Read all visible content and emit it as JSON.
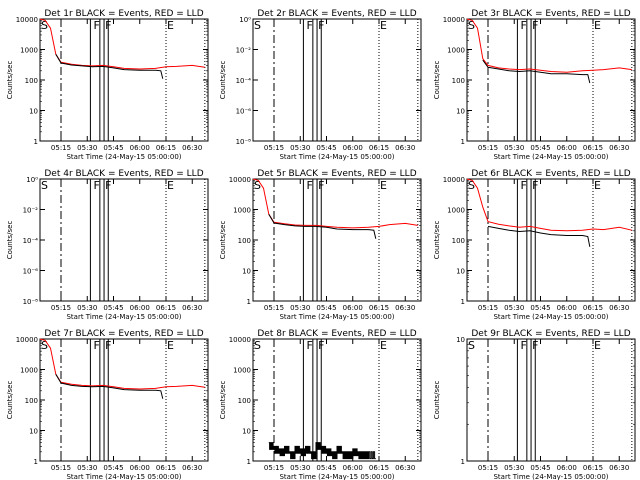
{
  "chart_data": [
    {
      "type": "line",
      "title": "Det 1r BLACK = Events, RED = LLD",
      "ylabel": "Counts/sec",
      "xlabel": "Start Time (24-May-15 05:00:00)",
      "yscale": "log",
      "ylim": [
        1,
        10000
      ],
      "ytick_labels": [
        "1",
        "10",
        "100",
        "1000",
        "10000"
      ],
      "xlim": [
        5.05,
        6.65
      ],
      "xtick_labels": [
        "05:15",
        "05:30",
        "05:45",
        "06:00",
        "06:15",
        "06:30"
      ],
      "vlines": {
        "dashdot": [
          5.25
        ],
        "solid": [
          5.53,
          5.62,
          5.66,
          5.7
        ],
        "dotted": [
          6.25,
          6.62
        ]
      },
      "markers": [
        {
          "label": "S",
          "x": 5.06
        },
        {
          "label": "F",
          "x": 5.56
        },
        {
          "label": "F",
          "x": 5.67
        },
        {
          "label": "E",
          "x": 6.26
        }
      ],
      "series": [
        {
          "color": "#ff0000",
          "x": [
            5.05,
            5.1,
            5.15,
            5.2,
            5.25,
            5.35,
            5.45,
            5.55,
            5.65,
            5.75,
            5.85,
            6.0,
            6.15,
            6.25,
            6.35,
            6.5,
            6.62
          ],
          "values": [
            10000,
            9000,
            5000,
            700,
            380,
            330,
            300,
            290,
            300,
            270,
            240,
            230,
            240,
            270,
            280,
            300,
            260
          ]
        },
        {
          "color": "#000000",
          "x": [
            5.2,
            5.25,
            5.35,
            5.45,
            5.55,
            5.65,
            5.75,
            5.85,
            6.0,
            6.15,
            6.2,
            6.22
          ],
          "values": [
            700,
            360,
            310,
            290,
            270,
            280,
            250,
            220,
            210,
            210,
            200,
            110
          ]
        }
      ]
    },
    {
      "type": "line",
      "title": "Det 2r BLACK = Events, RED = LLD",
      "ylabel": "Counts/sec",
      "xlabel": "Start Time (24-May-15 05:00:00)",
      "yscale": "log",
      "ylim": [
        1,
        1e-08
      ],
      "ytick_labels": [
        "10⁻⁸",
        "10⁻⁶",
        "10⁻⁴",
        "10⁻²",
        "10⁰"
      ],
      "xlim": [
        5.05,
        6.65
      ],
      "xtick_labels": [
        "05:15",
        "05:30",
        "05:45",
        "06:00",
        "06:15",
        "06:30"
      ],
      "vlines": {
        "dashdot": [
          5.25
        ],
        "solid": [
          5.53,
          5.62,
          5.66,
          5.7
        ],
        "dotted": [
          6.25,
          6.62
        ]
      },
      "markers": [
        {
          "label": "S",
          "x": 5.06
        },
        {
          "label": "F",
          "x": 5.56
        },
        {
          "label": "F",
          "x": 5.67
        },
        {
          "label": "E",
          "x": 6.26
        }
      ],
      "series": []
    },
    {
      "type": "line",
      "title": "Det 3r BLACK = Events, RED = LLD",
      "ylabel": "Counts/sec",
      "xlabel": "Start Time (24-May-15 05:00:00)",
      "yscale": "log",
      "ylim": [
        1,
        10000
      ],
      "ytick_labels": [
        "1",
        "10",
        "100",
        "1000",
        "10000"
      ],
      "xlim": [
        5.05,
        6.65
      ],
      "xtick_labels": [
        "05:15",
        "05:30",
        "05:45",
        "06:00",
        "06:15",
        "06:30"
      ],
      "vlines": {
        "dashdot": [
          5.25
        ],
        "solid": [
          5.53,
          5.62,
          5.66,
          5.7
        ],
        "dotted": [
          6.25,
          6.62
        ]
      },
      "markers": [
        {
          "label": "S",
          "x": 5.06
        },
        {
          "label": "F",
          "x": 5.56
        },
        {
          "label": "F",
          "x": 5.67
        },
        {
          "label": "E",
          "x": 6.26
        }
      ],
      "series": [
        {
          "color": "#ff0000",
          "x": [
            5.05,
            5.1,
            5.15,
            5.2,
            5.25,
            5.35,
            5.45,
            5.55,
            5.65,
            5.75,
            5.85,
            6.0,
            6.15,
            6.25,
            6.35,
            6.5,
            6.62
          ],
          "values": [
            10000,
            9000,
            5000,
            500,
            300,
            250,
            230,
            220,
            230,
            210,
            190,
            180,
            200,
            210,
            220,
            250,
            220
          ]
        },
        {
          "color": "#000000",
          "x": [
            5.2,
            5.25,
            5.35,
            5.45,
            5.55,
            5.65,
            5.75,
            5.85,
            6.0,
            6.15,
            6.2,
            6.22
          ],
          "values": [
            450,
            260,
            230,
            200,
            190,
            200,
            180,
            160,
            160,
            150,
            150,
            80
          ]
        }
      ]
    },
    {
      "type": "line",
      "title": "Det 4r BLACK = Events, RED = LLD",
      "ylabel": "Counts/sec",
      "xlabel": "Start Time (24-May-15 05:00:00)",
      "yscale": "log",
      "ylim": [
        1,
        1e-08
      ],
      "ytick_labels": [
        "10⁻⁸",
        "10⁻⁶",
        "10⁻⁴",
        "10⁻²",
        "10⁰"
      ],
      "xlim": [
        5.05,
        6.65
      ],
      "xtick_labels": [
        "05:15",
        "05:30",
        "05:45",
        "06:00",
        "06:15",
        "06:30"
      ],
      "vlines": {
        "dashdot": [
          5.25
        ],
        "solid": [
          5.53,
          5.62,
          5.66,
          5.7
        ],
        "dotted": [
          6.25,
          6.62
        ]
      },
      "markers": [
        {
          "label": "S",
          "x": 5.06
        },
        {
          "label": "F",
          "x": 5.56
        },
        {
          "label": "F",
          "x": 5.67
        },
        {
          "label": "E",
          "x": 6.26
        }
      ],
      "series": []
    },
    {
      "type": "line",
      "title": "Det 5r BLACK = Events, RED = LLD",
      "ylabel": "Counts/sec",
      "xlabel": "Start Time (24-May-15 05:00:00)",
      "yscale": "log",
      "ylim": [
        1,
        10000
      ],
      "ytick_labels": [
        "1",
        "10",
        "100",
        "1000",
        "10000"
      ],
      "xlim": [
        5.05,
        6.65
      ],
      "xtick_labels": [
        "05:15",
        "05:30",
        "05:45",
        "06:00",
        "06:15",
        "06:30"
      ],
      "vlines": {
        "dashdot": [
          5.25
        ],
        "solid": [
          5.53,
          5.62,
          5.66,
          5.7
        ],
        "dotted": [
          6.25,
          6.62
        ]
      },
      "markers": [
        {
          "label": "S",
          "x": 5.06
        },
        {
          "label": "F",
          "x": 5.56
        },
        {
          "label": "F",
          "x": 5.67
        },
        {
          "label": "E",
          "x": 6.26
        }
      ],
      "series": [
        {
          "color": "#ff0000",
          "x": [
            5.05,
            5.1,
            5.15,
            5.2,
            5.25,
            5.35,
            5.45,
            5.55,
            5.65,
            5.75,
            5.85,
            6.0,
            6.15,
            6.25,
            6.35,
            6.5,
            6.62
          ],
          "values": [
            10000,
            9000,
            5000,
            700,
            380,
            340,
            310,
            300,
            300,
            280,
            260,
            250,
            260,
            280,
            320,
            350,
            300
          ]
        },
        {
          "color": "#000000",
          "x": [
            5.2,
            5.25,
            5.35,
            5.45,
            5.55,
            5.65,
            5.75,
            5.85,
            6.0,
            6.15,
            6.2,
            6.22
          ],
          "values": [
            700,
            360,
            320,
            290,
            280,
            280,
            260,
            230,
            220,
            220,
            210,
            110
          ]
        }
      ]
    },
    {
      "type": "line",
      "title": "Det 6r BLACK = Events, RED = LLD",
      "ylabel": "Counts/sec",
      "xlabel": "Start Time (24-May-15 05:00:00)",
      "yscale": "log",
      "ylim": [
        1,
        10000
      ],
      "ytick_labels": [
        "1",
        "10",
        "100",
        "1000",
        "10000"
      ],
      "xlim": [
        5.05,
        6.65
      ],
      "xtick_labels": [
        "05:15",
        "05:30",
        "05:45",
        "06:00",
        "06:15",
        "06:30"
      ],
      "vlines": {
        "dashdot": [
          5.25
        ],
        "solid": [
          5.53,
          5.62,
          5.66,
          5.7
        ],
        "dotted": [
          6.25,
          6.62
        ]
      },
      "markers": [
        {
          "label": "S",
          "x": 5.06
        },
        {
          "label": "F",
          "x": 5.56
        },
        {
          "label": "F",
          "x": 5.67
        },
        {
          "label": "E",
          "x": 6.26
        }
      ],
      "series": [
        {
          "color": "#ff0000",
          "x": [
            5.05,
            5.1,
            5.15,
            5.2,
            5.25,
            5.35,
            5.45,
            5.55,
            5.65,
            5.75,
            5.85,
            6.0,
            6.15,
            6.25,
            6.35,
            6.5,
            6.62
          ],
          "values": [
            10000,
            9000,
            5000,
            1200,
            400,
            330,
            290,
            260,
            280,
            240,
            210,
            200,
            210,
            230,
            220,
            260,
            210
          ]
        },
        {
          "color": "#000000",
          "x": [
            5.25,
            5.35,
            5.45,
            5.55,
            5.65,
            5.75,
            5.85,
            6.0,
            6.15,
            6.2,
            6.22
          ],
          "values": [
            280,
            240,
            210,
            190,
            200,
            170,
            150,
            140,
            140,
            130,
            60
          ]
        }
      ]
    },
    {
      "type": "line",
      "title": "Det 7r BLACK = Events, RED = LLD",
      "ylabel": "Counts/sec",
      "xlabel": "Start Time (24-May-15 05:00:00)",
      "yscale": "log",
      "ylim": [
        1,
        10000
      ],
      "ytick_labels": [
        "1",
        "10",
        "100",
        "1000",
        "10000"
      ],
      "xlim": [
        5.05,
        6.65
      ],
      "xtick_labels": [
        "05:15",
        "05:30",
        "05:45",
        "06:00",
        "06:15",
        "06:30"
      ],
      "vlines": {
        "dashdot": [
          5.25
        ],
        "solid": [
          5.53,
          5.62,
          5.66,
          5.7
        ],
        "dotted": [
          6.25,
          6.62
        ]
      },
      "markers": [
        {
          "label": "S",
          "x": 5.06
        },
        {
          "label": "F",
          "x": 5.56
        },
        {
          "label": "F",
          "x": 5.67
        },
        {
          "label": "E",
          "x": 6.26
        }
      ],
      "series": [
        {
          "color": "#ff0000",
          "x": [
            5.05,
            5.1,
            5.15,
            5.2,
            5.25,
            5.35,
            5.45,
            5.55,
            5.65,
            5.75,
            5.85,
            6.0,
            6.15,
            6.25,
            6.35,
            6.5,
            6.62
          ],
          "values": [
            10000,
            9000,
            5000,
            700,
            380,
            330,
            300,
            290,
            300,
            270,
            240,
            230,
            240,
            270,
            280,
            300,
            260
          ]
        },
        {
          "color": "#000000",
          "x": [
            5.2,
            5.25,
            5.35,
            5.45,
            5.55,
            5.65,
            5.75,
            5.85,
            6.0,
            6.15,
            6.2,
            6.22
          ],
          "values": [
            700,
            360,
            300,
            280,
            270,
            280,
            250,
            220,
            210,
            210,
            200,
            110
          ]
        }
      ]
    },
    {
      "type": "line",
      "title": "Det 8r BLACK = Events, RED = LLD",
      "ylabel": "Counts/sec",
      "xlabel": "Start Time (24-May-15 05:00:00)",
      "yscale": "log",
      "ylim": [
        1,
        10000
      ],
      "ytick_labels": [
        "1",
        "10",
        "100",
        "1000",
        "10000"
      ],
      "xlim": [
        5.05,
        6.65
      ],
      "xtick_labels": [
        "05:15",
        "05:30",
        "05:45",
        "06:00",
        "06:15",
        "06:30"
      ],
      "vlines": {
        "dashdot": [
          5.25
        ],
        "solid": [
          5.53,
          5.62,
          5.66,
          5.7
        ],
        "dotted": [
          6.25,
          6.62
        ]
      },
      "markers": [
        {
          "label": "S",
          "x": 5.06
        },
        {
          "label": "F",
          "x": 5.56
        },
        {
          "label": "F",
          "x": 5.67
        },
        {
          "label": "E",
          "x": 6.26
        }
      ],
      "series": [
        {
          "color": "#000000",
          "style": "noisy-step",
          "x": [
            5.2,
            5.25,
            5.3,
            5.35,
            5.4,
            5.45,
            5.5,
            5.55,
            5.6,
            5.65,
            5.7,
            5.75,
            5.8,
            5.85,
            5.9,
            5.95,
            6.0,
            6.05,
            6.1,
            6.15,
            6.22
          ],
          "values": [
            4,
            3,
            2.5,
            3,
            2,
            3,
            2.5,
            3,
            2,
            4,
            3,
            2.5,
            2,
            3,
            2,
            2,
            2.5,
            2,
            2,
            2,
            2
          ]
        }
      ]
    },
    {
      "type": "line",
      "title": "Det 9r BLACK = Events, RED = LLD",
      "ylabel": "Counts/sec",
      "xlabel": "Start Time (24-May-15 05:00:00)",
      "yscale": "log",
      "ylim": [
        1,
        10
      ],
      "ytick_labels": [
        "1",
        "10"
      ],
      "xlim": [
        5.05,
        6.65
      ],
      "xtick_labels": [
        "05:15",
        "05:30",
        "05:45",
        "06:00",
        "06:15",
        "06:30"
      ],
      "vlines": {
        "dashdot": [
          5.25
        ],
        "solid": [
          5.53,
          5.62,
          5.66,
          5.7
        ],
        "dotted": [
          6.25,
          6.62
        ]
      },
      "markers": [
        {
          "label": "S",
          "x": 5.06
        },
        {
          "label": "F",
          "x": 5.56
        },
        {
          "label": "F",
          "x": 5.67
        },
        {
          "label": "E",
          "x": 6.26
        }
      ],
      "series": []
    }
  ]
}
